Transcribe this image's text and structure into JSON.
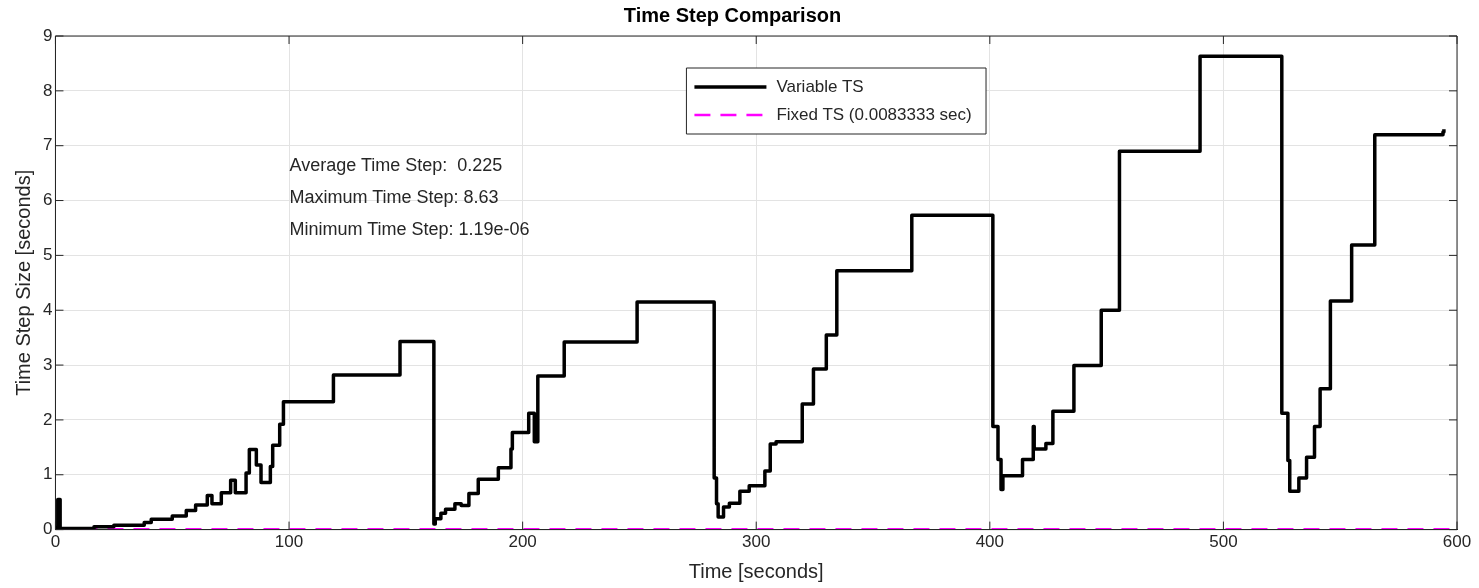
{
  "chart_data": {
    "type": "step",
    "title": "Time Step Comparison",
    "xlabel": "Time [seconds]",
    "ylabel": "Time Step Size [seconds]",
    "xlim": [
      0,
      600
    ],
    "xticks": [
      0,
      100,
      200,
      300,
      400,
      500,
      600
    ],
    "ylim": [
      0,
      9
    ],
    "yticks": [
      0,
      1,
      2,
      3,
      4,
      5,
      6,
      7,
      8,
      9
    ],
    "grid": true,
    "legend": "top",
    "marker": "none",
    "annotations": [
      "Average Time Step:  0.225",
      "Maximum Time Step: 8.63",
      "Minimum Time Step: 1.19e-06"
    ],
    "series": [
      {
        "name": "Variable TS",
        "color": "#000000",
        "line_style": "solid",
        "x": [
          0,
          1,
          2,
          16.5,
          25,
          38,
          41,
          50,
          56,
          60,
          65,
          67,
          71,
          75,
          77,
          81.6,
          83,
          86,
          88,
          92,
          93,
          96,
          97.6,
          119,
          147.5,
          162,
          162.6,
          165,
          167,
          171,
          173.7,
          177,
          181,
          189.6,
          195,
          195.6,
          202.6,
          205,
          206.5,
          217.8,
          249,
          282,
          283,
          283.7,
          286,
          288.5,
          293,
          297,
          303.7,
          306,
          308.5,
          319.7,
          324.5,
          330,
          334.5,
          366.6,
          401.3,
          403.5,
          404.8,
          405.6,
          414,
          418.6,
          419,
          424,
          427,
          436,
          447.7,
          455.5,
          490,
          525,
          527.6,
          528.4,
          532.3,
          535.6,
          539,
          541.4,
          545.8,
          554.9,
          564.8,
          594,
          594.4
        ],
        "values": [
          0.03,
          0.55,
          0.02,
          0.05,
          0.08,
          0.13,
          0.19,
          0.25,
          0.35,
          0.45,
          0.62,
          0.47,
          0.67,
          0.9,
          0.67,
          1.03,
          1.46,
          1.18,
          0.86,
          1.15,
          1.54,
          1.92,
          2.33,
          2.82,
          3.43,
          0.1,
          0.2,
          0.3,
          0.37,
          0.47,
          0.44,
          0.66,
          0.92,
          1.13,
          1.47,
          1.77,
          2.12,
          1.6,
          2.8,
          3.42,
          4.15,
          0.94,
          0.47,
          0.23,
          0.41,
          0.48,
          0.7,
          0.8,
          1.07,
          1.56,
          1.6,
          2.29,
          2.93,
          3.55,
          4.72,
          5.73,
          1.88,
          1.28,
          0.73,
          0.98,
          1.28,
          1.88,
          1.47,
          1.57,
          2.16,
          2.99,
          4.0,
          6.9,
          8.63,
          2.12,
          1.26,
          0.7,
          0.94,
          1.32,
          1.88,
          2.57,
          4.17,
          5.19,
          7.2,
          7.25,
          7.3
        ]
      },
      {
        "name": "Fixed TS (0.0083333 sec)",
        "type": "line",
        "color": "#ff00ff",
        "line_style": "dashed",
        "x": [
          0,
          600
        ],
        "values": [
          0.0083333,
          0.0083333
        ]
      }
    ]
  }
}
